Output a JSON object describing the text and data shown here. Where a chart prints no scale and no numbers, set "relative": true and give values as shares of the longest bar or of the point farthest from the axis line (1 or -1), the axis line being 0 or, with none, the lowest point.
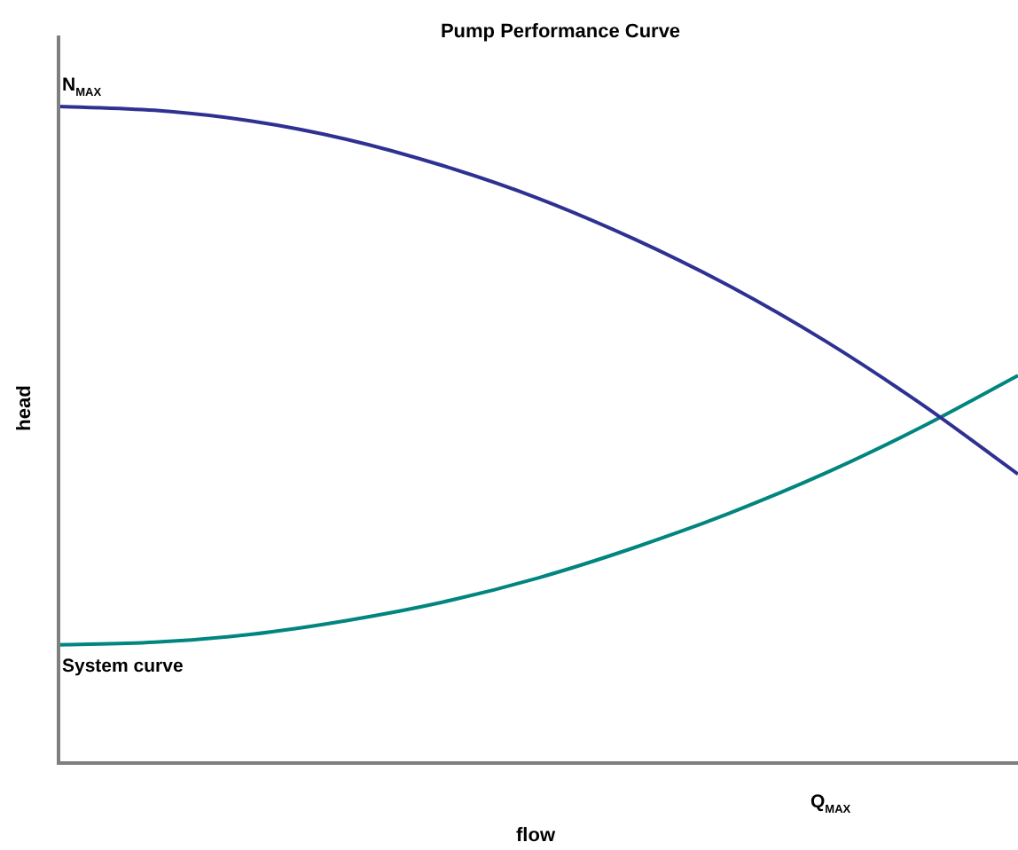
{
  "chart_data": {
    "type": "line",
    "title": "Pump Performance Curve",
    "xlabel": "flow",
    "ylabel": "head",
    "relative": true,
    "legend": false,
    "marker": "none",
    "categories": [
      null,
      null,
      null,
      null,
      null,
      null,
      null,
      null,
      null,
      null,
      null
    ],
    "series": [
      {
        "color": "#2e3192",
        "values": [
          1,
          0.994,
          0.978,
          0.95,
          0.91,
          0.86,
          0.798,
          0.726,
          0.642,
          0.546,
          0.44
        ]
      },
      {
        "color": "#00857f",
        "values": [
          0.18,
          0.184,
          0.196,
          0.217,
          0.245,
          0.282,
          0.328,
          0.381,
          0.442,
          0.512,
          0.59
        ]
      }
    ],
    "annotations": [
      "N$_{MAX}$",
      "System curve",
      "Q$_{MAX}$"
    ]
  }
}
